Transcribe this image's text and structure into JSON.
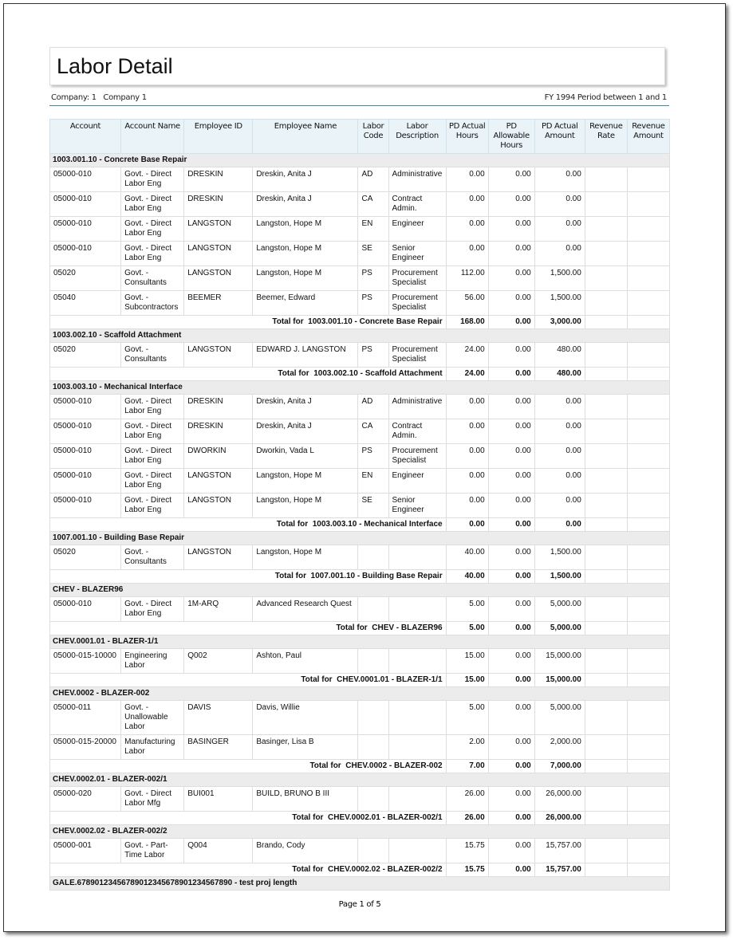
{
  "title": "Labor Detail",
  "company": "Company: 1   Company 1",
  "period": "FY 1994 Period between 1 and 1",
  "columns": [
    "Account",
    "Account Name",
    "Employee ID",
    "Employee Name",
    "Labor Code",
    "Labor Description",
    "PD Actual Hours",
    "PD Allowable Hours",
    "PD Actual Amount",
    "Revenue Rate",
    "Revenue Amount"
  ],
  "groups": [
    {
      "title": "1003.001.10 - Concrete Base Repair",
      "rows": [
        [
          "05000-010",
          "Govt. - Direct Labor Eng",
          "DRESKIN",
          "Dreskin, Anita J",
          "AD",
          "Administrative",
          "0.00",
          "0.00",
          "0.00",
          "",
          ""
        ],
        [
          "05000-010",
          "Govt. - Direct Labor Eng",
          "DRESKIN",
          "Dreskin, Anita J",
          "CA",
          "Contract Admin.",
          "0.00",
          "0.00",
          "0.00",
          "",
          ""
        ],
        [
          "05000-010",
          "Govt. - Direct Labor Eng",
          "LANGSTON",
          "Langston, Hope M",
          "EN",
          "Engineer",
          "0.00",
          "0.00",
          "0.00",
          "",
          ""
        ],
        [
          "05000-010",
          "Govt. - Direct Labor Eng",
          "LANGSTON",
          "Langston, Hope M",
          "SE",
          "Senior Engineer",
          "0.00",
          "0.00",
          "0.00",
          "",
          ""
        ],
        [
          "05020",
          "Govt. - Consultants",
          "LANGSTON",
          "Langston, Hope M",
          "PS",
          "Procurement Specialist",
          "112.00",
          "0.00",
          "1,500.00",
          "",
          ""
        ],
        [
          "05040",
          "Govt. - Subcontractors",
          "BEEMER",
          "Beemer, Edward",
          "PS",
          "Procurement Specialist",
          "56.00",
          "0.00",
          "1,500.00",
          "",
          ""
        ]
      ],
      "total": {
        "label": "Total for  1003.001.10 - Concrete Base Repair",
        "hours": "168.00",
        "allow": "0.00",
        "amount": "3,000.00"
      }
    },
    {
      "title": "1003.002.10 - Scaffold Attachment",
      "rows": [
        [
          "05020",
          "Govt. - Consultants",
          "LANGSTON",
          "EDWARD J. LANGSTON",
          "PS",
          "Procurement Specialist",
          "24.00",
          "0.00",
          "480.00",
          "",
          ""
        ]
      ],
      "total": {
        "label": "Total for  1003.002.10 - Scaffold Attachment",
        "hours": "24.00",
        "allow": "0.00",
        "amount": "480.00"
      }
    },
    {
      "title": "1003.003.10 - Mechanical Interface",
      "rows": [
        [
          "05000-010",
          "Govt. - Direct Labor Eng",
          "DRESKIN",
          "Dreskin, Anita J",
          "AD",
          "Administrative",
          "0.00",
          "0.00",
          "0.00",
          "",
          ""
        ],
        [
          "05000-010",
          "Govt. - Direct Labor Eng",
          "DRESKIN",
          "Dreskin, Anita J",
          "CA",
          "Contract Admin.",
          "0.00",
          "0.00",
          "0.00",
          "",
          ""
        ],
        [
          "05000-010",
          "Govt. - Direct Labor Eng",
          "DWORKIN",
          "Dworkin, Vada L",
          "PS",
          "Procurement Specialist",
          "0.00",
          "0.00",
          "0.00",
          "",
          ""
        ],
        [
          "05000-010",
          "Govt. - Direct Labor Eng",
          "LANGSTON",
          "Langston, Hope M",
          "EN",
          "Engineer",
          "0.00",
          "0.00",
          "0.00",
          "",
          ""
        ],
        [
          "05000-010",
          "Govt. - Direct Labor Eng",
          "LANGSTON",
          "Langston, Hope M",
          "SE",
          "Senior Engineer",
          "0.00",
          "0.00",
          "0.00",
          "",
          ""
        ]
      ],
      "total": {
        "label": "Total for  1003.003.10 - Mechanical Interface",
        "hours": "0.00",
        "allow": "0.00",
        "amount": "0.00"
      }
    },
    {
      "title": "1007.001.10 - Building Base Repair",
      "rows": [
        [
          "05020",
          "Govt. - Consultants",
          "LANGSTON",
          "Langston, Hope M",
          "",
          "",
          "40.00",
          "0.00",
          "1,500.00",
          "",
          ""
        ]
      ],
      "total": {
        "label": "Total for  1007.001.10 - Building Base Repair",
        "hours": "40.00",
        "allow": "0.00",
        "amount": "1,500.00"
      }
    },
    {
      "title": "CHEV - BLAZER96",
      "rows": [
        [
          "05000-010",
          "Govt. - Direct Labor Eng",
          "1M-ARQ",
          "Advanced Research Quest",
          "",
          "",
          "5.00",
          "0.00",
          "5,000.00",
          "",
          ""
        ]
      ],
      "total": {
        "label": "Total for  CHEV - BLAZER96",
        "hours": "5.00",
        "allow": "0.00",
        "amount": "5,000.00"
      }
    },
    {
      "title": "CHEV.0001.01 - BLAZER-1/1",
      "rows": [
        [
          "05000-015-10000",
          "Engineering Labor",
          "Q002",
          "Ashton, Paul",
          "",
          "",
          "15.00",
          "0.00",
          "15,000.00",
          "",
          ""
        ]
      ],
      "total": {
        "label": "Total for  CHEV.0001.01 - BLAZER-1/1",
        "hours": "15.00",
        "allow": "0.00",
        "amount": "15,000.00"
      }
    },
    {
      "title": "CHEV.0002 - BLAZER-002",
      "rows": [
        [
          "05000-011",
          "Govt. - Unallowable Labor",
          "DAVIS",
          "Davis, Willie",
          "",
          "",
          "5.00",
          "0.00",
          "5,000.00",
          "",
          ""
        ],
        [
          "05000-015-20000",
          "Manufacturing Labor",
          "BASINGER",
          "Basinger, Lisa B",
          "",
          "",
          "2.00",
          "0.00",
          "2,000.00",
          "",
          ""
        ]
      ],
      "total": {
        "label": "Total for  CHEV.0002 - BLAZER-002",
        "hours": "7.00",
        "allow": "0.00",
        "amount": "7,000.00"
      }
    },
    {
      "title": "CHEV.0002.01 - BLAZER-002/1",
      "rows": [
        [
          "05000-020",
          "Govt. - Direct Labor Mfg",
          "BUI001",
          "BUILD, BRUNO B III",
          "",
          "",
          "26.00",
          "0.00",
          "26,000.00",
          "",
          ""
        ]
      ],
      "total": {
        "label": "Total for  CHEV.0002.01 - BLAZER-002/1",
        "hours": "26.00",
        "allow": "0.00",
        "amount": "26,000.00"
      }
    },
    {
      "title": "CHEV.0002.02 - BLAZER-002/2",
      "rows": [
        [
          "05000-001",
          "Govt. - Part-Time Labor",
          "Q004",
          "Brando, Cody",
          "",
          "",
          "15.75",
          "0.00",
          "15,757.00",
          "",
          ""
        ]
      ],
      "total": {
        "label": "Total for  CHEV.0002.02 - BLAZER-002/2",
        "hours": "15.75",
        "allow": "0.00",
        "amount": "15,757.00"
      }
    },
    {
      "title": "GALE.67890123456789012345678901234567890 - test proj length",
      "rows": [],
      "total": null
    }
  ],
  "footer": "Page 1 of 5"
}
